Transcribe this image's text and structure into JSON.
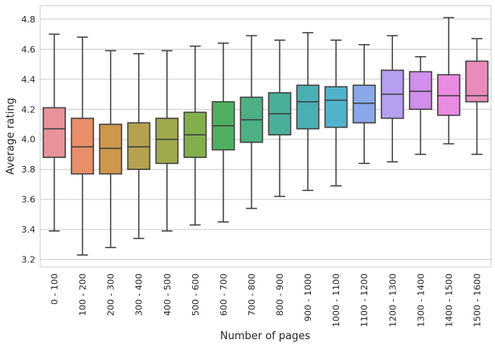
{
  "chart_data": {
    "type": "box",
    "xlabel": "Number of pages",
    "ylabel": "Average rating",
    "ylim": [
      3.15,
      4.89
    ],
    "yticks": [
      3.2,
      3.4,
      3.6,
      3.8,
      4.0,
      4.2,
      4.4,
      4.6,
      4.8
    ],
    "grid": true,
    "categories": [
      "0 - 100",
      "100 - 200",
      "200 - 300",
      "300 - 400",
      "400 - 500",
      "500 - 600",
      "600 - 700",
      "700 - 800",
      "800 - 900",
      "900 - 1000",
      "1000 - 1100",
      "1100 - 1200",
      "1200 - 1300",
      "1300 - 1400",
      "1400 - 1500",
      "1500 - 1600"
    ],
    "boxes": [
      {
        "whisker_low": 3.39,
        "q1": 3.88,
        "median": 4.07,
        "q3": 4.21,
        "whisker_high": 4.7
      },
      {
        "whisker_low": 3.23,
        "q1": 3.77,
        "median": 3.95,
        "q3": 4.14,
        "whisker_high": 4.68
      },
      {
        "whisker_low": 3.28,
        "q1": 3.77,
        "median": 3.94,
        "q3": 4.1,
        "whisker_high": 4.59
      },
      {
        "whisker_low": 3.34,
        "q1": 3.8,
        "median": 3.95,
        "q3": 4.11,
        "whisker_high": 4.57
      },
      {
        "whisker_low": 3.39,
        "q1": 3.84,
        "median": 4.0,
        "q3": 4.14,
        "whisker_high": 4.59
      },
      {
        "whisker_low": 3.43,
        "q1": 3.88,
        "median": 4.03,
        "q3": 4.18,
        "whisker_high": 4.62
      },
      {
        "whisker_low": 3.45,
        "q1": 3.93,
        "median": 4.09,
        "q3": 4.25,
        "whisker_high": 4.64
      },
      {
        "whisker_low": 3.54,
        "q1": 3.98,
        "median": 4.13,
        "q3": 4.28,
        "whisker_high": 4.69
      },
      {
        "whisker_low": 3.62,
        "q1": 4.03,
        "median": 4.17,
        "q3": 4.31,
        "whisker_high": 4.66
      },
      {
        "whisker_low": 3.66,
        "q1": 4.07,
        "median": 4.25,
        "q3": 4.36,
        "whisker_high": 4.71
      },
      {
        "whisker_low": 3.69,
        "q1": 4.08,
        "median": 4.26,
        "q3": 4.35,
        "whisker_high": 4.66
      },
      {
        "whisker_low": 3.84,
        "q1": 4.11,
        "median": 4.24,
        "q3": 4.36,
        "whisker_high": 4.63
      },
      {
        "whisker_low": 3.85,
        "q1": 4.14,
        "median": 4.3,
        "q3": 4.46,
        "whisker_high": 4.69
      },
      {
        "whisker_low": 3.9,
        "q1": 4.2,
        "median": 4.32,
        "q3": 4.45,
        "whisker_high": 4.55
      },
      {
        "whisker_low": 3.97,
        "q1": 4.16,
        "median": 4.29,
        "q3": 4.43,
        "whisker_high": 4.81
      },
      {
        "whisker_low": 3.9,
        "q1": 4.25,
        "median": 4.29,
        "q3": 4.52,
        "whisker_high": 4.67
      }
    ],
    "colors": [
      "#e8929b",
      "#e88e6b",
      "#cd974e",
      "#b4a24e",
      "#a0aa4c",
      "#81b04b",
      "#4fb160",
      "#4db085",
      "#4aae9b",
      "#4baeb2",
      "#4fb3cc",
      "#88a8e8",
      "#b49ff0",
      "#d18eec",
      "#e98be0",
      "#e98cbc"
    ]
  }
}
